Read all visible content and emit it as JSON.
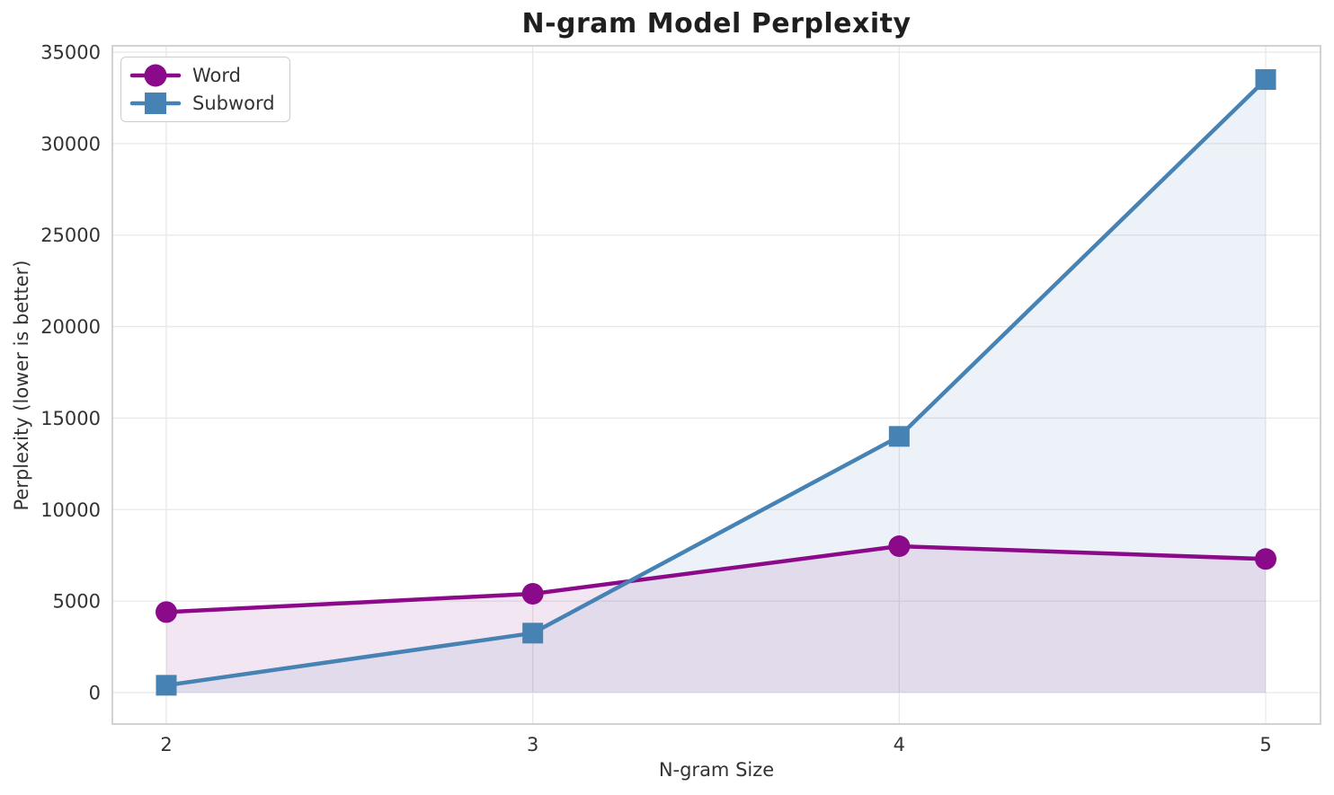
{
  "chart_data": {
    "type": "line",
    "title": "N-gram Model Perplexity",
    "xlabel": "N-gram Size",
    "ylabel": "Perplexity (lower is better)",
    "x": [
      2,
      3,
      4,
      5
    ],
    "x_tick_labels": [
      "2",
      "3",
      "4",
      "5"
    ],
    "y_ticks": [
      0,
      5000,
      10000,
      15000,
      20000,
      25000,
      30000,
      35000
    ],
    "y_tick_labels": [
      "0",
      "5000",
      "10000",
      "15000",
      "20000",
      "25000",
      "30000",
      "35000"
    ],
    "ylim": [
      0,
      35000
    ],
    "xlim": [
      1.85,
      5.15
    ],
    "grid": true,
    "area_fill_to_zero": true,
    "fill_opacity": 0.1,
    "legend_position": "upper-left",
    "series": [
      {
        "name": "Word",
        "marker": "circle",
        "color": "#8A0A8A",
        "values": [
          4400,
          5400,
          8000,
          7300
        ]
      },
      {
        "name": "Subword",
        "marker": "square",
        "color": "#4682B4",
        "values": [
          400,
          3250,
          14000,
          33500
        ]
      }
    ],
    "style": {
      "grid_color": "#E8E8E8",
      "spine_color": "#CDCDCD",
      "tick_label_color": "#333333",
      "title_color": "#1F1F1F",
      "background": "#FFFFFF",
      "line_width": 4.5,
      "marker_size": 23
    }
  }
}
